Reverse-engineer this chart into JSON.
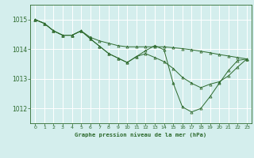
{
  "title": "Graphe pression niveau de la mer (hPa)",
  "background_color": "#d4eeed",
  "grid_color": "#ffffff",
  "line_color": "#2d6a2d",
  "xlim": [
    -0.5,
    23.5
  ],
  "ylim": [
    1011.5,
    1015.5
  ],
  "yticks": [
    1012,
    1013,
    1014,
    1015
  ],
  "xticks": [
    0,
    1,
    2,
    3,
    4,
    5,
    6,
    7,
    8,
    9,
    10,
    11,
    12,
    13,
    14,
    15,
    16,
    17,
    18,
    19,
    20,
    21,
    22,
    23
  ],
  "series1_x": [
    0,
    1,
    2,
    3,
    4,
    5,
    6,
    7,
    8,
    9,
    10,
    11,
    12,
    13,
    14,
    15,
    16,
    17,
    18,
    19,
    20,
    21,
    22,
    23
  ],
  "series1_y": [
    1015.0,
    1014.87,
    1014.62,
    1014.47,
    1014.47,
    1014.62,
    1014.4,
    1014.28,
    1014.2,
    1014.12,
    1014.08,
    1014.08,
    1014.08,
    1014.08,
    1014.08,
    1014.05,
    1014.02,
    1013.98,
    1013.93,
    1013.88,
    1013.82,
    1013.77,
    1013.72,
    1013.67
  ],
  "series2_x": [
    0,
    1,
    2,
    3,
    4,
    5,
    6,
    7,
    8,
    9,
    10,
    11,
    12,
    13,
    14,
    15,
    16,
    17,
    18,
    19,
    20,
    21,
    22,
    23
  ],
  "series2_y": [
    1015.0,
    1014.87,
    1014.62,
    1014.47,
    1014.47,
    1014.62,
    1014.35,
    1014.1,
    1013.85,
    1013.7,
    1013.55,
    1013.75,
    1013.85,
    1013.72,
    1013.58,
    1013.35,
    1013.05,
    1012.85,
    1012.7,
    1012.82,
    1012.9,
    1013.1,
    1013.4,
    1013.67
  ],
  "series3_x": [
    0,
    1,
    2,
    3,
    4,
    5,
    6,
    7,
    8,
    9,
    10,
    11,
    12,
    13,
    14,
    15,
    16,
    17,
    18,
    19,
    20,
    21,
    22,
    23
  ],
  "series3_y": [
    1015.0,
    1014.87,
    1014.62,
    1014.47,
    1014.47,
    1014.62,
    1014.35,
    1014.1,
    1013.85,
    1013.7,
    1013.55,
    1013.75,
    1013.95,
    1014.12,
    1013.98,
    1012.85,
    1012.05,
    1011.88,
    1012.0,
    1012.4,
    1012.85,
    1013.28,
    1013.62,
    1013.67
  ]
}
